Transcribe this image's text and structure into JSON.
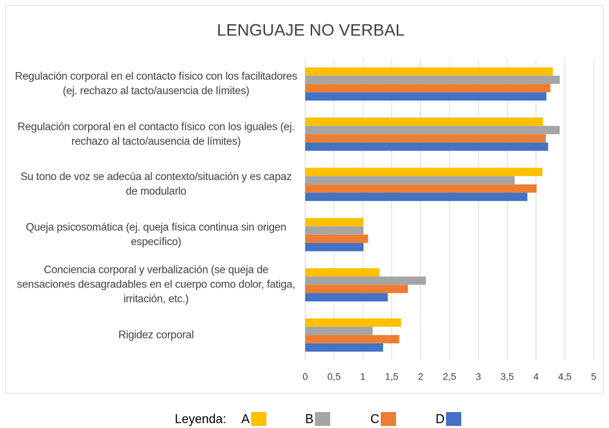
{
  "chart_data": {
    "type": "bar",
    "orientation": "horizontal",
    "title": "LENGUAJE NO VERBAL",
    "categories": [
      "Regulación corporal en el contacto físico con los facilitadores (ej. rechazo al tacto/ausencia de límites)",
      "Regulación corporal en el contacto físico con los iguales (ej. rechazo al tacto/ausencia de límites)",
      "Su tono de voz se adecúa al contexto/situación y es capaz de modularlo",
      "Queja psicosomática (ej. queja física continua sin origen específico)",
      "Conciencia corporal y verbalización (se queja de sensaciones desagradables en el cuerpo como dolor, fatiga, irritación, etc.)",
      "Rigidez corporal"
    ],
    "series": [
      {
        "name": "A",
        "color": "#ffc000",
        "values": [
          4.29,
          4.12,
          4.11,
          1.01,
          1.29,
          1.66
        ]
      },
      {
        "name": "B",
        "color": "#a5a5a5",
        "values": [
          4.41,
          4.41,
          3.63,
          1.01,
          2.09,
          1.17
        ]
      },
      {
        "name": "C",
        "color": "#ed7d31",
        "values": [
          4.25,
          4.17,
          4.01,
          1.09,
          1.78,
          1.63
        ]
      },
      {
        "name": "D",
        "color": "#4472c4",
        "values": [
          4.18,
          4.21,
          3.85,
          1.01,
          1.43,
          1.35
        ]
      }
    ],
    "legend_title": "Leyenda:",
    "xlim": [
      0,
      5
    ],
    "xticks": [
      0,
      {
        "value": 0.5,
        "label": "0,5"
      },
      1,
      {
        "value": 1.5,
        "label": "1,5"
      },
      2,
      {
        "value": 2.5,
        "label": "2,5"
      },
      3,
      {
        "value": 3.5,
        "label": "3,5"
      },
      4,
      {
        "value": 4.5,
        "label": "4,5"
      },
      5
    ],
    "grid": true
  }
}
